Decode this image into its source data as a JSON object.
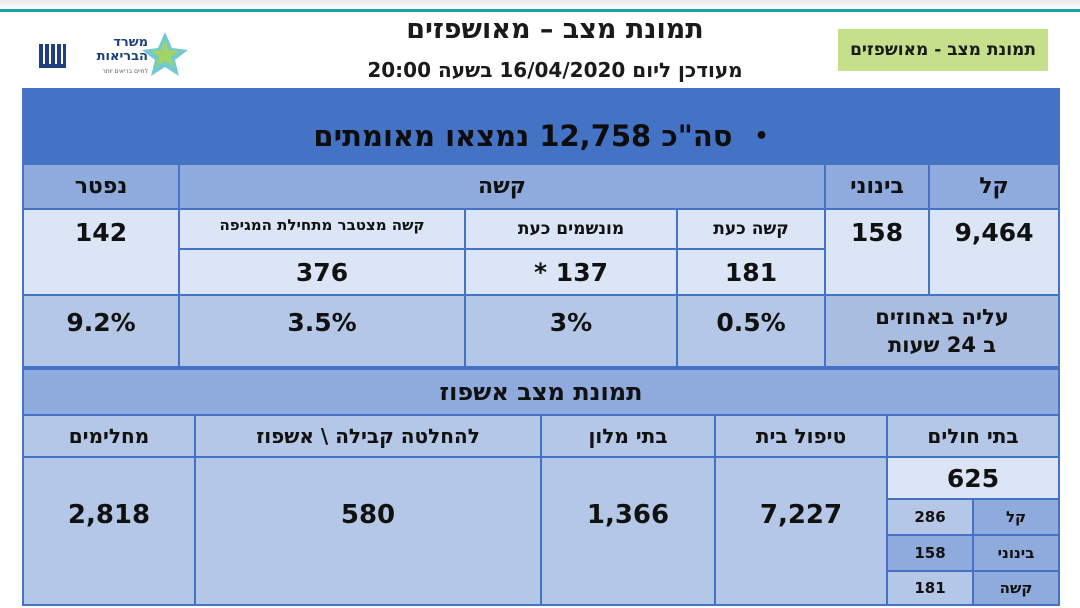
{
  "header": {
    "title": "תמונת מצב – מאושפזים",
    "subtitle": "מעודכן ליום 16/04/2020 בשעה 20:00",
    "badge": "תמונת מצב - מאושפזים"
  },
  "logo": {
    "line1": "משרד",
    "line2": "הבריאות",
    "tagline": "לחיים בריאים יותר"
  },
  "summary": {
    "bullet": "•",
    "total": "סה\"כ 12,758 נמצאו מאומתים"
  },
  "status_table": {
    "headers": {
      "mild": "קל",
      "moderate": "בינוני",
      "severe": "קשה",
      "deceased": "נפטר"
    },
    "subheaders": {
      "severe_now": "קשה כעת",
      "ventilated_now": "מונשמים כעת",
      "severe_cumulative": "קשה מצטבר מתחילת המגיפה"
    },
    "values": {
      "mild": "9,464",
      "moderate": "158",
      "severe_now": "181",
      "ventilated_now": "137 *",
      "severe_cumulative": "376",
      "deceased": "142"
    },
    "increase_label_line1": "עליה באחוזים",
    "increase_label_line2": "ב 24 שעות",
    "increase": {
      "severe_now": "0.5%",
      "ventilated_now": "3%",
      "severe_cumulative": "3.5%",
      "deceased": "9.2%"
    }
  },
  "hospitalization": {
    "title": "תמונת מצב אשפוז",
    "headers": {
      "hospitals": "בתי חולים",
      "home_care": "טיפול בית",
      "hotels": "בתי מלון",
      "admission_decision": "להחלטה קבילה \\ אשפוז",
      "recovered": "מחלימים"
    },
    "values": {
      "hospitals_total": "625",
      "home_care": "7,227",
      "hotels": "1,366",
      "admission_decision": "580",
      "recovered": "2,818"
    },
    "hospital_breakdown": [
      {
        "label": "קל",
        "value": "286"
      },
      {
        "label": "בינוני",
        "value": "158"
      },
      {
        "label": "קשה",
        "value": "181"
      }
    ]
  }
}
